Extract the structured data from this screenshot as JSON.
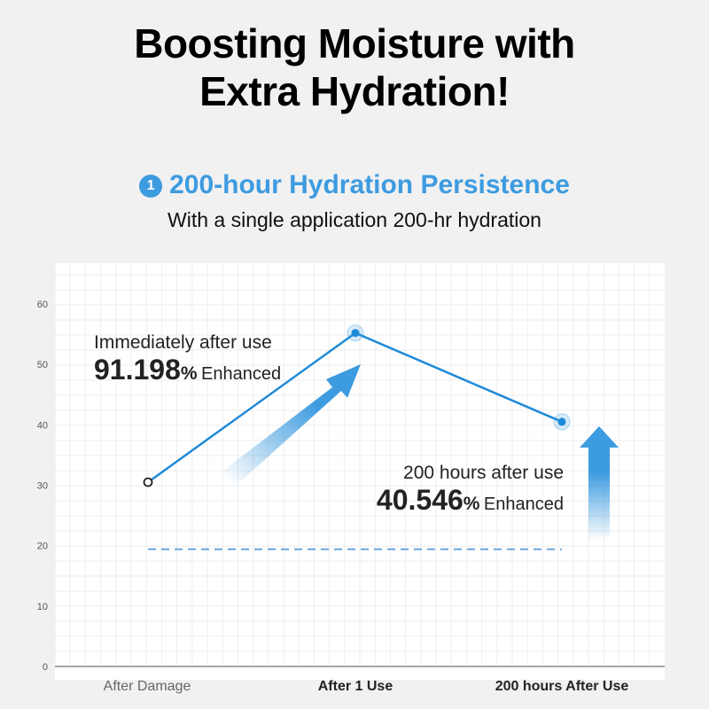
{
  "header": {
    "title_line1": "Boosting Moisture with",
    "title_line2": "Extra Hydration!",
    "section_number": "1",
    "section_title": "200-hour Hydration Persistence",
    "section_subtitle": "With a single application 200-hr hydration"
  },
  "annotations": [
    {
      "label": "Immediately after use",
      "value": "91.198",
      "unit": "%",
      "suffix": "Enhanced"
    },
    {
      "label": "200 hours after use",
      "value": "40.546",
      "unit": "%",
      "suffix": "Enhanced"
    }
  ],
  "chart_data": {
    "type": "line",
    "categories": [
      "After Damage",
      "After 1 Use",
      "200 hours After Use"
    ],
    "values": [
      30.5,
      55.2,
      40.5
    ],
    "reference_line": 19.4,
    "ylim": [
      0,
      60
    ],
    "yticks": [
      "0",
      "10",
      "20",
      "30",
      "40",
      "50",
      "60"
    ],
    "grid": true,
    "colors": {
      "line": "#1f8ad8",
      "arrow": "#3d9be0",
      "reference": "#6aa6dc"
    }
  }
}
